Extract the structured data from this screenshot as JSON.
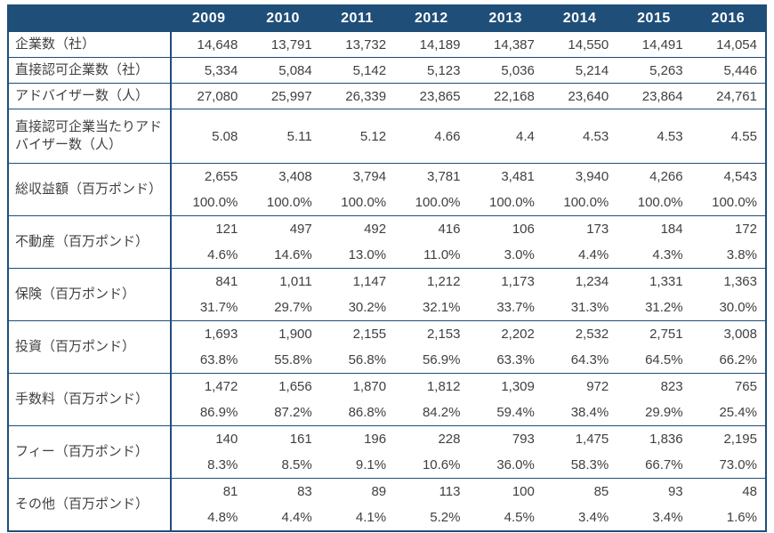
{
  "chart_data": {
    "type": "table",
    "title": "",
    "columns": [
      "",
      "2009",
      "2010",
      "2011",
      "2012",
      "2013",
      "2014",
      "2015",
      "2016"
    ],
    "header_bg_color": "#1F4E79",
    "header_text_color": "#ffffff",
    "border_color": "#1F4E79",
    "body_text_color": "#404040",
    "rows": [
      {
        "label": "企業数（社）",
        "values": [
          "14,648",
          "13,791",
          "13,732",
          "14,189",
          "14,387",
          "14,550",
          "14,491",
          "14,054"
        ],
        "percents": null
      },
      {
        "label": "直接認可企業数（社）",
        "values": [
          "5,334",
          "5,084",
          "5,142",
          "5,123",
          "5,036",
          "5,214",
          "5,263",
          "5,446"
        ],
        "percents": null
      },
      {
        "label": "アドバイザー数（人）",
        "values": [
          "27,080",
          "25,997",
          "26,339",
          "23,865",
          "22,168",
          "23,640",
          "23,864",
          "24,761"
        ],
        "percents": null
      },
      {
        "label": "直接認可企業当たりアドバイザー数（人）",
        "values": [
          "5.08",
          "5.11",
          "5.12",
          "4.66",
          "4.4",
          "4.53",
          "4.53",
          "4.55"
        ],
        "percents": null
      },
      {
        "label": "総収益額（百万ポンド）",
        "values": [
          "2,655",
          "3,408",
          "3,794",
          "3,781",
          "3,481",
          "3,940",
          "4,266",
          "4,543"
        ],
        "percents": [
          "100.0%",
          "100.0%",
          "100.0%",
          "100.0%",
          "100.0%",
          "100.0%",
          "100.0%",
          "100.0%"
        ]
      },
      {
        "label": "不動産（百万ポンド）",
        "values": [
          "121",
          "497",
          "492",
          "416",
          "106",
          "173",
          "184",
          "172"
        ],
        "percents": [
          "4.6%",
          "14.6%",
          "13.0%",
          "11.0%",
          "3.0%",
          "4.4%",
          "4.3%",
          "3.8%"
        ]
      },
      {
        "label": "保険（百万ポンド）",
        "values": [
          "841",
          "1,011",
          "1,147",
          "1,212",
          "1,173",
          "1,234",
          "1,331",
          "1,363"
        ],
        "percents": [
          "31.7%",
          "29.7%",
          "30.2%",
          "32.1%",
          "33.7%",
          "31.3%",
          "31.2%",
          "30.0%"
        ]
      },
      {
        "label": "投資（百万ポンド）",
        "values": [
          "1,693",
          "1,900",
          "2,155",
          "2,153",
          "2,202",
          "2,532",
          "2,751",
          "3,008"
        ],
        "percents": [
          "63.8%",
          "55.8%",
          "56.8%",
          "56.9%",
          "63.3%",
          "64.3%",
          "64.5%",
          "66.2%"
        ]
      },
      {
        "label": "手数料（百万ポンド）",
        "values": [
          "1,472",
          "1,656",
          "1,870",
          "1,812",
          "1,309",
          "972",
          "823",
          "765"
        ],
        "percents": [
          "86.9%",
          "87.2%",
          "86.8%",
          "84.2%",
          "59.4%",
          "38.4%",
          "29.9%",
          "25.4%"
        ]
      },
      {
        "label": "フィー（百万ポンド）",
        "values": [
          "140",
          "161",
          "196",
          "228",
          "793",
          "1,475",
          "1,836",
          "2,195"
        ],
        "percents": [
          "8.3%",
          "8.5%",
          "9.1%",
          "10.6%",
          "36.0%",
          "58.3%",
          "66.7%",
          "73.0%"
        ]
      },
      {
        "label": "その他（百万ポンド）",
        "values": [
          "81",
          "83",
          "89",
          "113",
          "100",
          "85",
          "93",
          "48"
        ],
        "percents": [
          "4.8%",
          "4.4%",
          "4.1%",
          "5.2%",
          "4.5%",
          "3.4%",
          "3.4%",
          "1.6%"
        ]
      }
    ]
  }
}
